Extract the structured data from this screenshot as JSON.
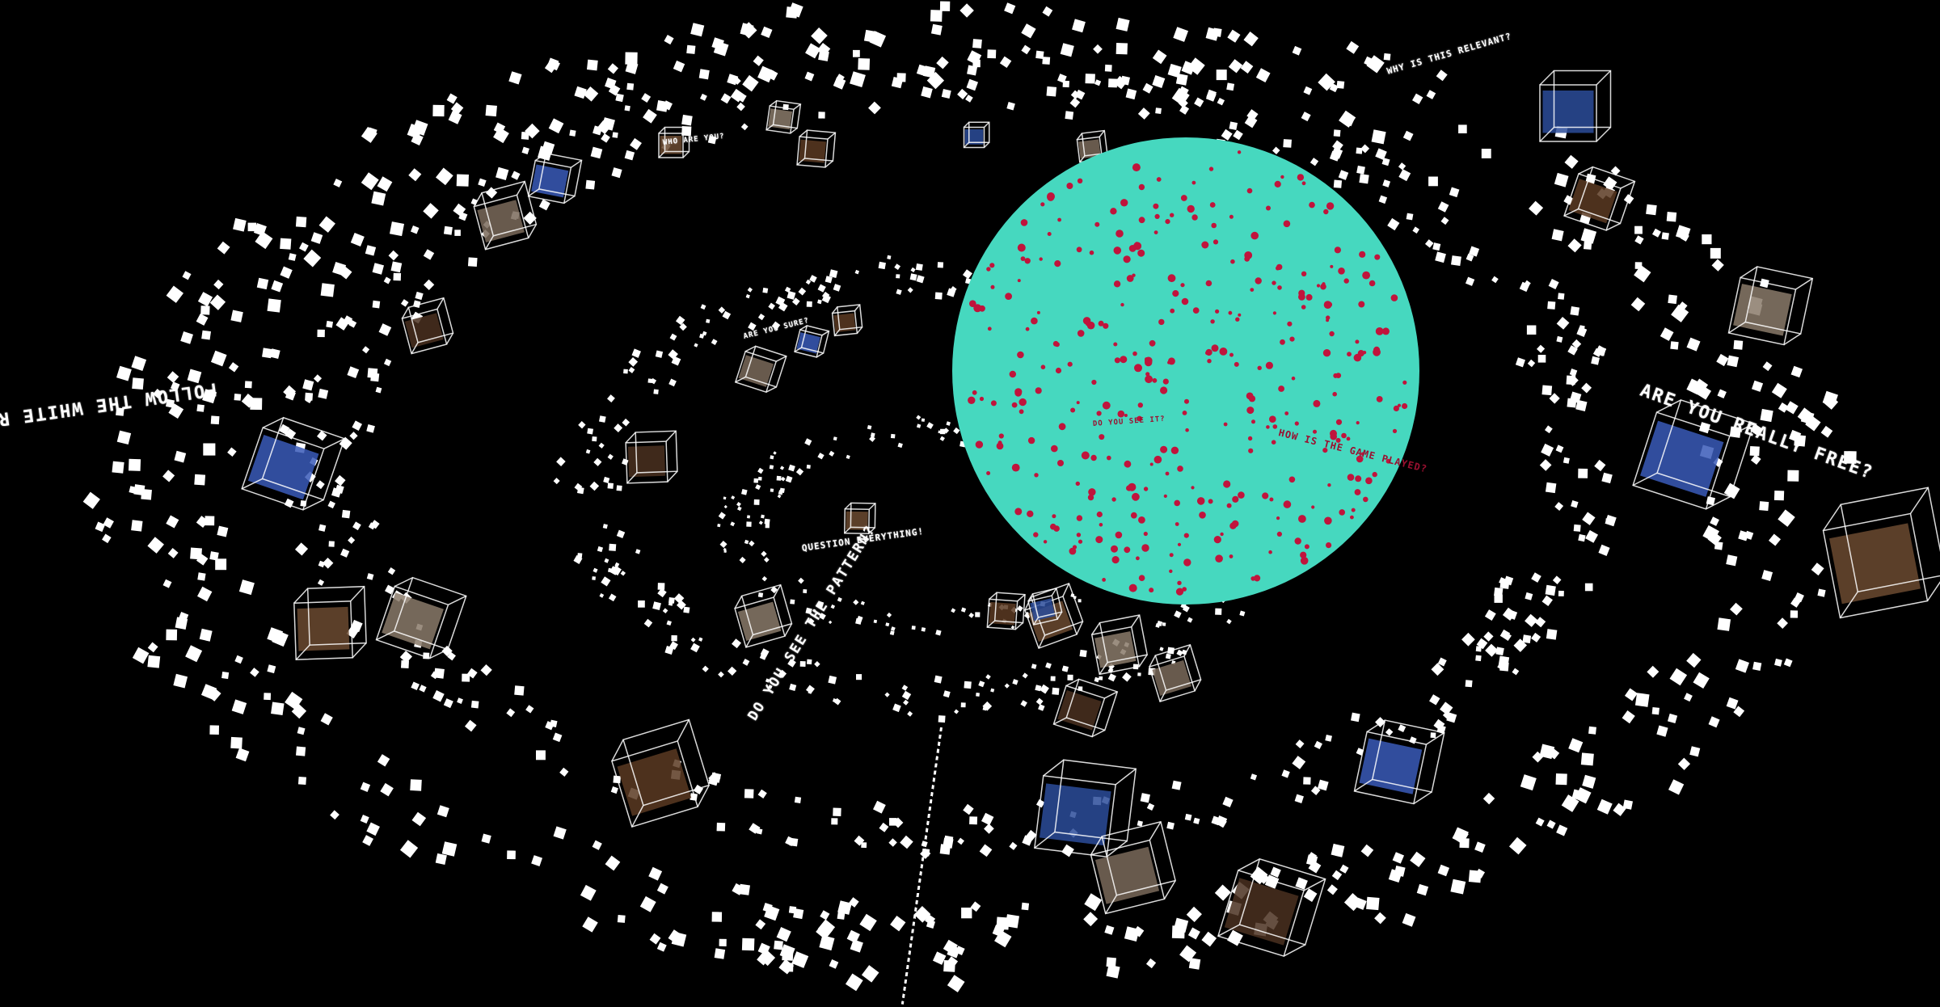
{
  "scene": {
    "background": "#000000",
    "particle_color": "#ffffff",
    "planet_particle_color": "#c0143c"
  },
  "planet": {
    "color": "#46d8bf"
  },
  "labels": {
    "follow_white_rabbit": "FOLLOW THE WHITE RABBIT",
    "are_you_really_free": "ARE YOU REALLY FREE?",
    "how_is_the_game_played": "HOW IS THE GAME PLAYED?",
    "do_you_see_the_pattern": "DO YOU SEE THE PATTERN?",
    "question_everything": "QUESTION EVERYTHING!",
    "why_is_this_relevant": "WHY IS THIS RELEVANT?",
    "do_you_see_it": "DO YOU SEE IT?",
    "are_you_sure": "ARE YOU SURE?",
    "who_are_you": "WHO ARE YOU?"
  }
}
